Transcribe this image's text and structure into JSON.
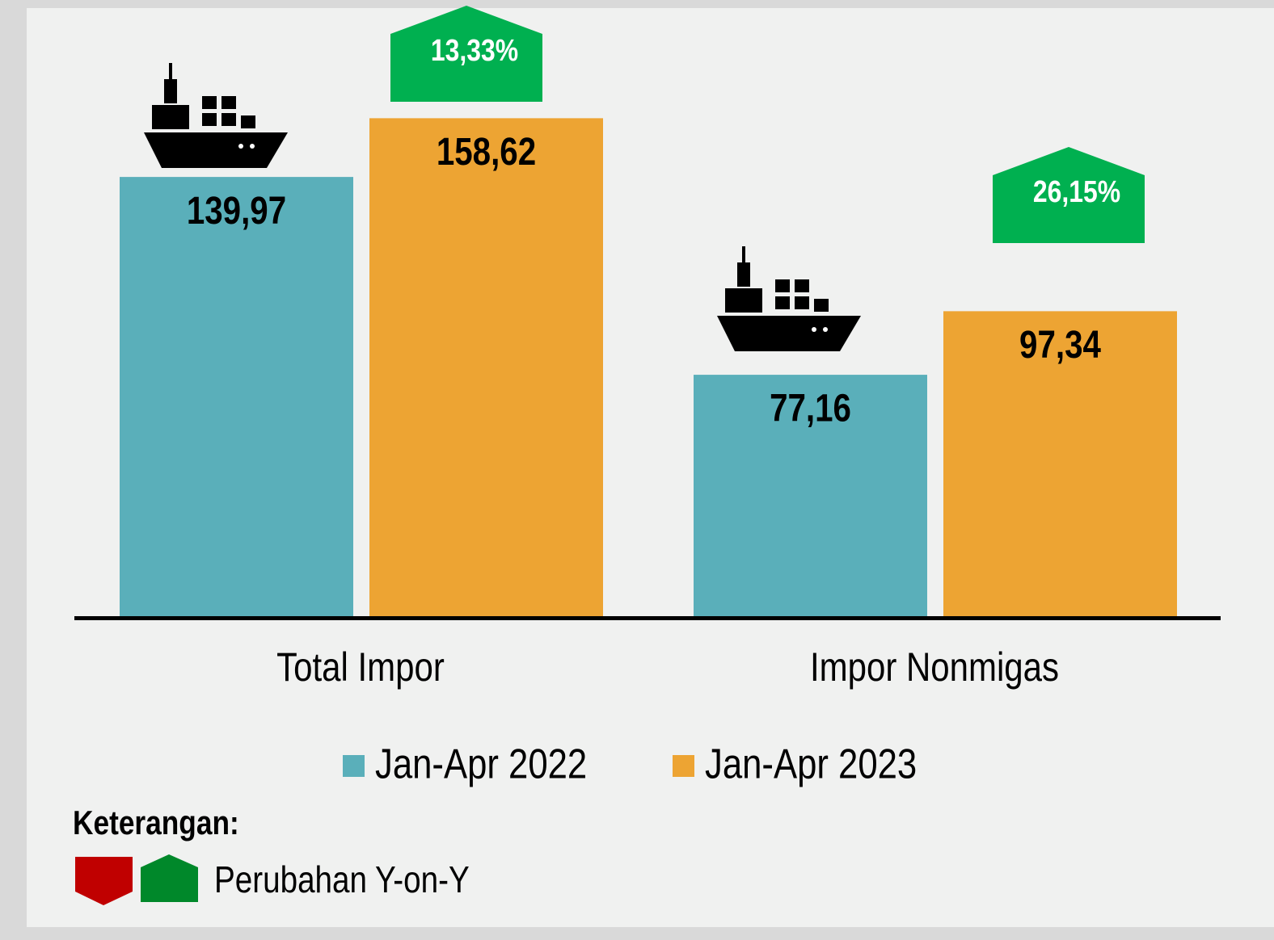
{
  "chart_data": {
    "type": "bar",
    "categories": [
      "Total Impor",
      "Impor Nonmigas"
    ],
    "series": [
      {
        "name": "Jan-Apr 2022",
        "color": "#5aafba",
        "values": [
          139.97,
          77.16
        ],
        "value_labels": [
          "139,97",
          "77,16"
        ]
      },
      {
        "name": "Jan-Apr 2023",
        "color": "#eda433",
        "values": [
          158.62,
          97.34
        ],
        "value_labels": [
          "158,62",
          "97,34"
        ]
      }
    ],
    "change": {
      "values": [
        13.33,
        26.15
      ],
      "value_labels": [
        "13,33%",
        "26,15%"
      ],
      "color": "#00b050"
    },
    "ylim": [
      0,
      180
    ],
    "note": {
      "title": "Keterangan:",
      "label": "Perubahan Y-on-Y",
      "down_color": "#c00000",
      "up_color": "#00882a"
    }
  }
}
